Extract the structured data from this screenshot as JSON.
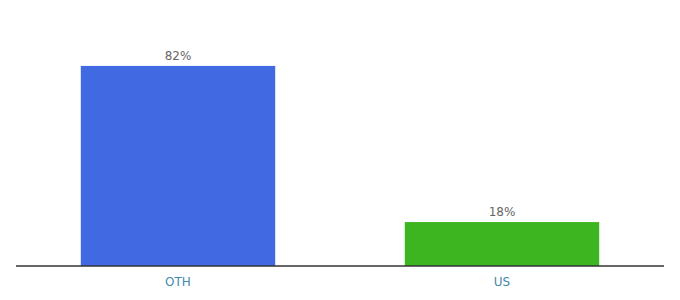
{
  "chart_data": {
    "type": "bar",
    "categories": [
      "OTH",
      "US"
    ],
    "values": [
      82,
      18
    ],
    "value_labels": [
      "82%",
      "18%"
    ],
    "colors": [
      "#4169e1",
      "#3cb520"
    ],
    "ylim": [
      0,
      100
    ],
    "data_labels": true,
    "tick_labels": "x",
    "grid": false
  }
}
